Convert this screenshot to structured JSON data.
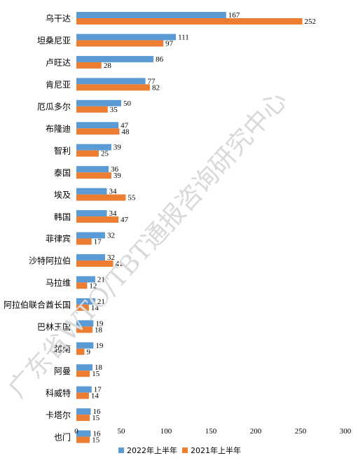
{
  "chart_data": {
    "type": "bar",
    "orientation": "horizontal",
    "categories": [
      "乌干达",
      "坦桑尼亚",
      "卢旺达",
      "肯尼亚",
      "厄瓜多尔",
      "布隆迪",
      "智利",
      "泰国",
      "埃及",
      "韩国",
      "菲律宾",
      "沙特阿拉伯",
      "马拉维",
      "阿拉伯联合酋长国",
      "巴林王国",
      "越南",
      "阿曼",
      "科威特",
      "卡塔尔",
      "也门"
    ],
    "series": [
      {
        "name": "2022年上半年",
        "color": "#5b9bd5",
        "values": [
          167,
          111,
          86,
          77,
          50,
          47,
          39,
          36,
          34,
          34,
          32,
          32,
          21,
          21,
          19,
          19,
          18,
          17,
          16,
          16
        ]
      },
      {
        "name": "2021年上半年",
        "color": "#ed7d31",
        "values": [
          252,
          97,
          28,
          82,
          35,
          48,
          25,
          39,
          55,
          47,
          17,
          41,
          12,
          14,
          18,
          9,
          15,
          14,
          15,
          15
        ]
      }
    ],
    "xlim": [
      0,
      300
    ],
    "xticks": [
      "0",
      "50",
      "100",
      "150",
      "200",
      "250",
      "300"
    ],
    "grid": false,
    "legend": "bottom-center"
  },
  "watermark": "广东省WTO/TBT通报咨询研究中心"
}
